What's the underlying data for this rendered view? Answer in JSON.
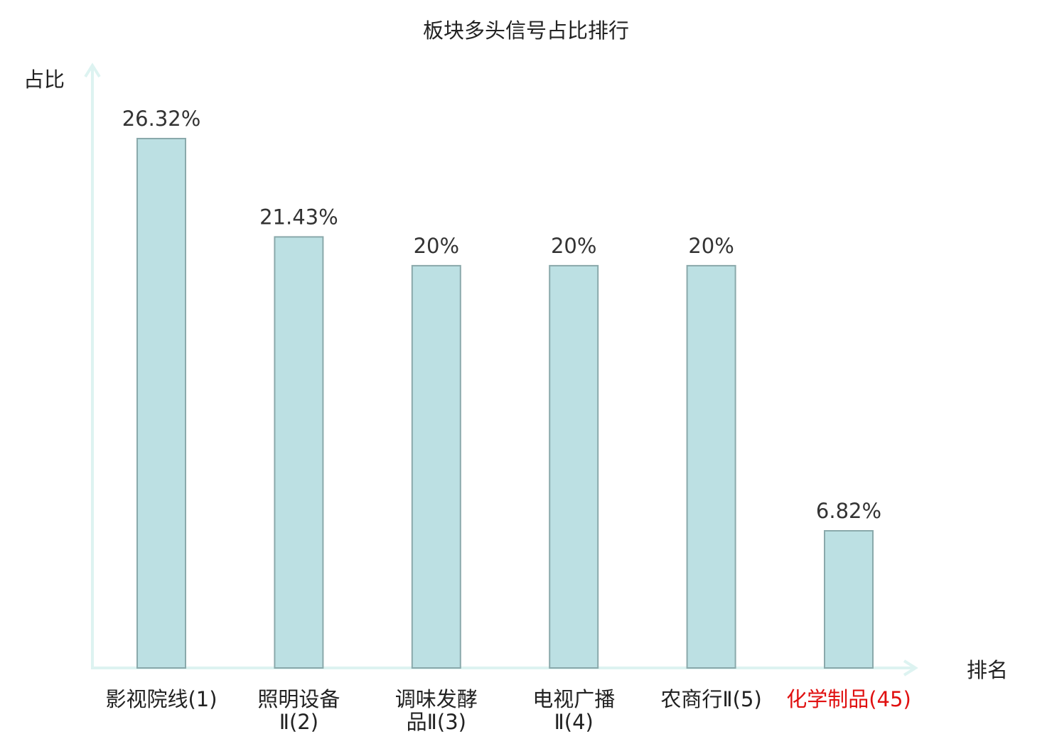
{
  "chart_data": {
    "type": "bar",
    "title": "板块多头信号占比排行",
    "xlabel": "排名",
    "ylabel": "占比",
    "categories": [
      [
        "影视院线(1)"
      ],
      [
        "照明设备",
        "Ⅱ(2)"
      ],
      [
        "调味发酵",
        "品Ⅱ(3)"
      ],
      [
        "电视广播",
        "Ⅱ(4)"
      ],
      [
        "农商行Ⅱ(5)"
      ],
      [
        "化学制品(45)"
      ]
    ],
    "values": [
      26.32,
      21.43,
      20,
      20,
      20,
      6.82
    ],
    "value_labels": [
      "26.32%",
      "21.43%",
      "20%",
      "20%",
      "20%",
      "6.82%"
    ],
    "highlight_index": 5,
    "ylim": [
      0,
      26.32
    ],
    "grid": false,
    "colors": {
      "bar_fill": "#bce0e3",
      "bar_stroke": "#8aa9ab",
      "axis": "#ddf3f1",
      "text": "#222222",
      "highlight": "#e01010"
    }
  }
}
